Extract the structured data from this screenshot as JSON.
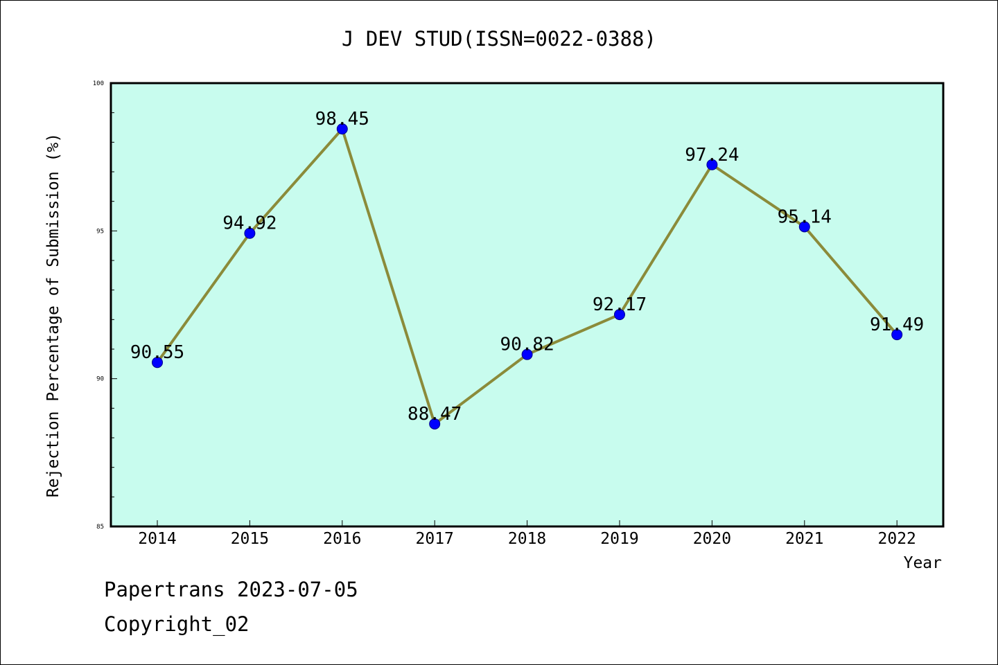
{
  "chart_data": {
    "type": "line",
    "title": "J DEV STUD(ISSN=0022-0388)",
    "xlabel": "Year",
    "ylabel": "Rejection Percentage of Submission (%)",
    "x": [
      "2014",
      "2015",
      "2016",
      "2017",
      "2018",
      "2019",
      "2020",
      "2021",
      "2022"
    ],
    "series": [
      {
        "values": [
          90.55,
          94.92,
          98.45,
          88.47,
          90.82,
          92.17,
          97.24,
          95.14,
          91.49
        ],
        "labels": [
          "90.55",
          "94.92",
          "98.45",
          "88.47",
          "90.82",
          "92.17",
          "97.24",
          "95.14",
          "91.49"
        ]
      }
    ],
    "ylim": [
      85,
      100
    ],
    "yticks": [
      85,
      90,
      95,
      100
    ],
    "yticks_labels": [
      "85",
      "90",
      "95",
      "100"
    ],
    "grid": false,
    "colors": {
      "plot_background": "#c8fcee",
      "line": "#8b8b3a",
      "marker": "#0000ff"
    }
  },
  "footer": {
    "date_text": "Papertrans 2023-07-05",
    "copyright_text": "Copyright_02"
  }
}
